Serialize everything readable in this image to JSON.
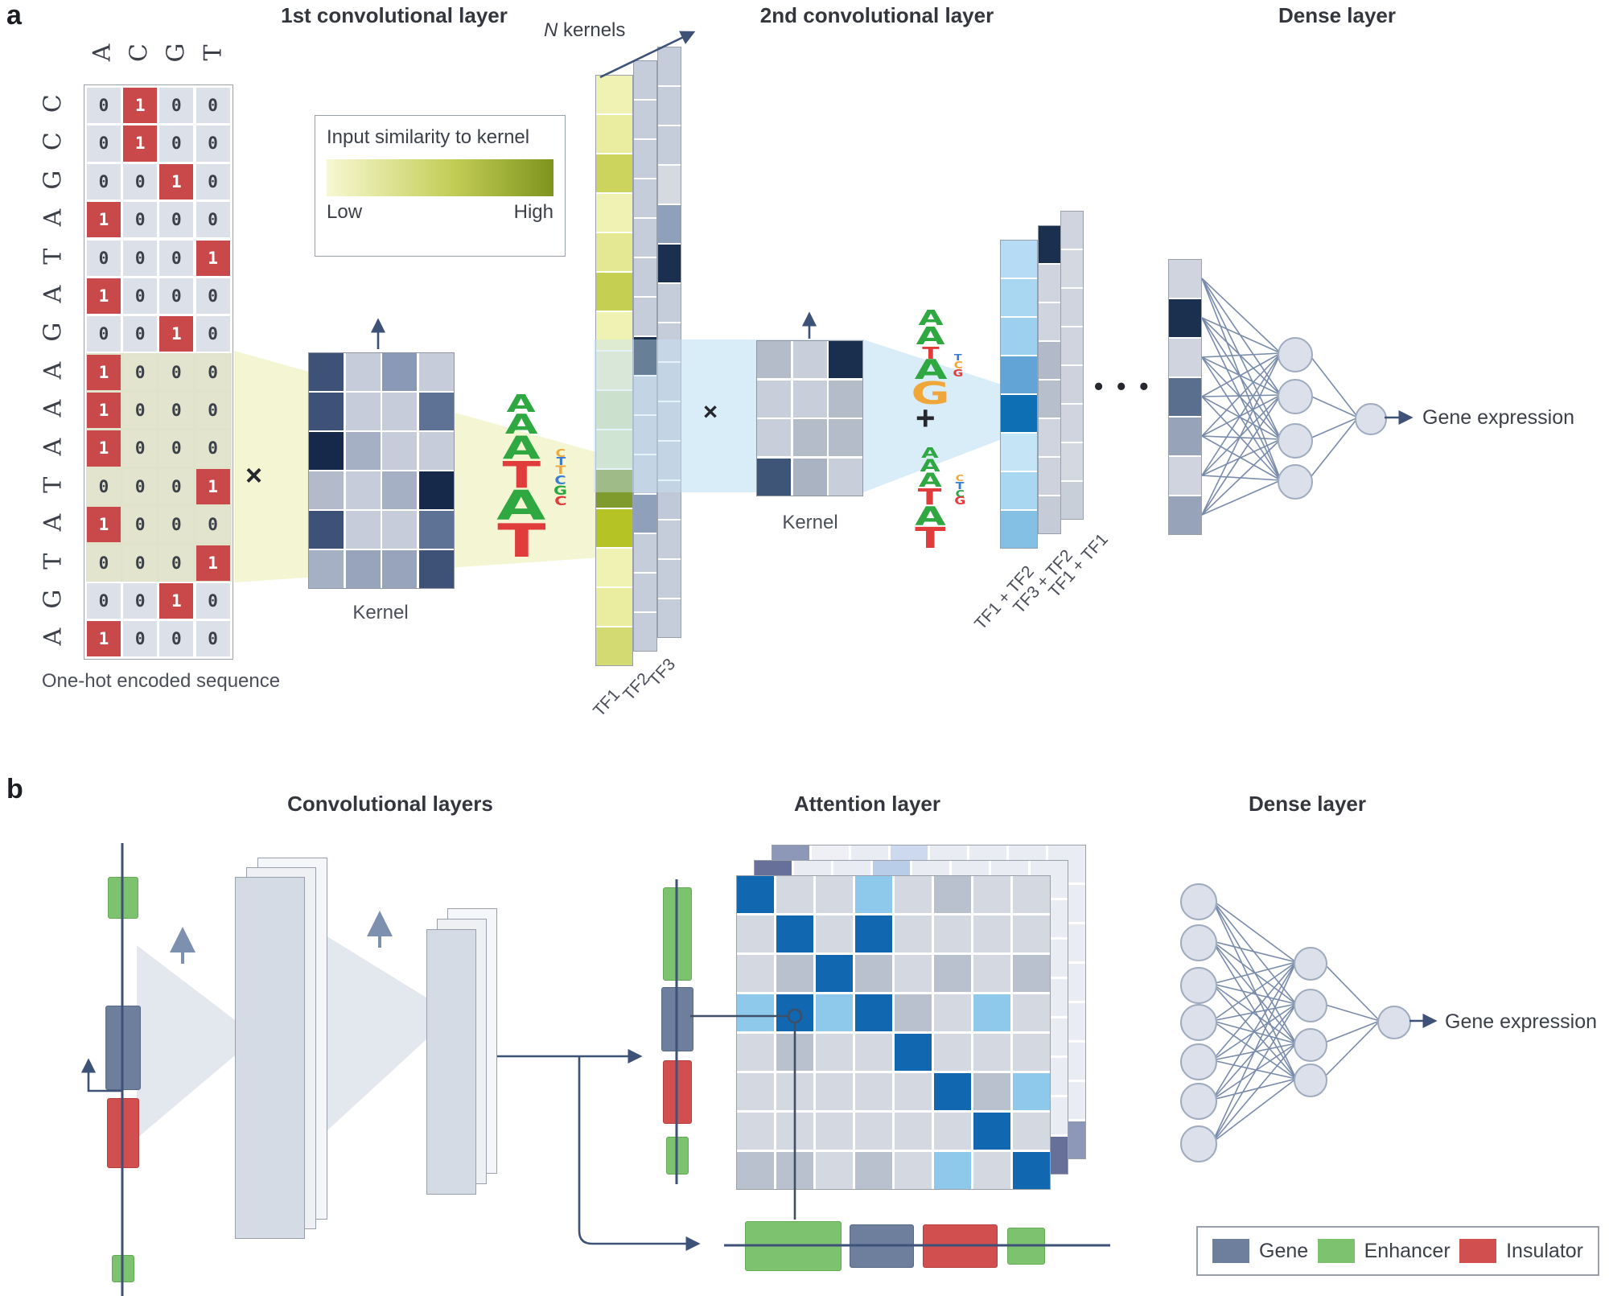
{
  "panel_a": {
    "label": "a",
    "titles": {
      "conv1": "1st convolutional layer",
      "n": "N",
      "kernels": " kernels",
      "conv2": "2nd convolutional layer",
      "dense": "Dense layer"
    },
    "similarity_legend": {
      "title": "Input similarity to kernel",
      "low": "Low",
      "high": "High",
      "gradient": [
        "#f7f8d2",
        "#c3ce57",
        "#7e941d"
      ]
    },
    "onehot": {
      "header": [
        "A",
        "C",
        "G",
        "T"
      ],
      "sequence": [
        "C",
        "C",
        "G",
        "A",
        "T",
        "A",
        "G",
        "A",
        "A",
        "A",
        "T",
        "A",
        "T",
        "G",
        "A"
      ],
      "rows": [
        [
          0,
          1,
          0,
          0
        ],
        [
          0,
          1,
          0,
          0
        ],
        [
          0,
          0,
          1,
          0
        ],
        [
          1,
          0,
          0,
          0
        ],
        [
          0,
          0,
          0,
          1
        ],
        [
          1,
          0,
          0,
          0
        ],
        [
          0,
          0,
          1,
          0
        ],
        [
          1,
          0,
          0,
          0
        ],
        [
          1,
          0,
          0,
          0
        ],
        [
          1,
          0,
          0,
          0
        ],
        [
          0,
          0,
          0,
          1
        ],
        [
          1,
          0,
          0,
          0
        ],
        [
          0,
          0,
          0,
          1
        ],
        [
          0,
          0,
          1,
          0
        ],
        [
          1,
          0,
          0,
          0
        ]
      ],
      "highlight_rows": [
        7,
        8,
        9,
        10,
        11,
        12
      ],
      "caption": "One-hot encoded sequence",
      "multiply": "×"
    },
    "kernel1": {
      "label": "Kernel",
      "cells": [
        [
          "#3d5276",
          "#c6ccd9",
          "#8a9ab6",
          "#c6ccd9"
        ],
        [
          "#3d5276",
          "#c6ccd9",
          "#c6ccd9",
          "#5d7295"
        ],
        [
          "#16294b",
          "#a6b0c4",
          "#c6ccd9",
          "#c6ccd9"
        ],
        [
          "#b3bbca",
          "#c6ccd9",
          "#a6b0c4",
          "#16294b"
        ],
        [
          "#3d5276",
          "#c6ccd9",
          "#c6ccd9",
          "#5d7295"
        ],
        [
          "#a6b0c4",
          "#97a4bb",
          "#97a4bb",
          "#3d5276"
        ]
      ]
    },
    "logo_tataaa_1": {
      "letters": [
        {
          "ch": "A",
          "c": "g",
          "s": 30
        },
        {
          "ch": "A",
          "c": "g",
          "s": 34
        },
        {
          "ch": "A",
          "c": "g",
          "s": 39
        },
        {
          "ch": "T",
          "c": "r",
          "s": 45
        },
        {
          "ch": "A",
          "c": "g",
          "s": 51
        },
        {
          "ch": "T",
          "c": "r",
          "s": 57
        }
      ],
      "side": [
        {
          "ch": "C",
          "c": "y",
          "s": 13
        },
        {
          "ch": "T",
          "c": "b",
          "s": 13
        },
        {
          "ch": "T",
          "c": "y",
          "s": 14
        },
        {
          "ch": "C",
          "c": "b",
          "s": 15
        },
        {
          "ch": "G",
          "c": "g",
          "s": 16
        },
        {
          "ch": "C",
          "c": "r",
          "s": 16
        }
      ]
    },
    "tf_columns": {
      "labels": [
        "TF1",
        "TF2",
        "TF3"
      ],
      "tf1": [
        "#f0f2b4",
        "#eaeda0",
        "#ccd45e",
        "#f0f2b4",
        "#e4e892",
        "#c5cf52",
        "#f0f2b4",
        "#e7ecc4",
        "#cfe0ae",
        "#d8e5b8",
        "#7f9b2e",
        "#b5c424",
        "#f0f2b4",
        "#eaeda0",
        "#d3da71"
      ],
      "tf2": [
        "#c6cdda",
        "#c6cdda",
        "#c6cdda",
        "#c6cdda",
        "#c6cdda",
        "#c6cdda",
        "#c6cdda",
        "#1b2f4e",
        "#bfc9d8",
        "#bfc9d8",
        "#bfc9d8",
        "#8fa0bb",
        "#c6cdda",
        "#c6cdda",
        "#c6cdda"
      ],
      "tf3": [
        "#c6cdda",
        "#c6cdda",
        "#c6cdda",
        "#d5d9e0",
        "#8fa0bb",
        "#1b2f4e",
        "#c6cdda",
        "#c6cdda",
        "#bfc9d8",
        "#bfc9d8",
        "#bfc9d8",
        "#bfc9d8",
        "#c6cdda",
        "#c6cdda",
        "#c6cdda"
      ]
    },
    "conv2": {
      "multiply": "×",
      "plus": "+",
      "kernel": {
        "label": "Kernel",
        "cells": [
          [
            "#b5bcc9",
            "#c9cfda",
            "#1a2e4d"
          ],
          [
            "#c9cfda",
            "#c9cfda",
            "#b5bcc9"
          ],
          [
            "#c9cfda",
            "#b5bcc9",
            "#b5bcc9"
          ],
          [
            "#3f5578",
            "#aab3c2",
            "#c9cfda"
          ]
        ]
      },
      "logo_gataa": {
        "letters": [
          {
            "ch": "A",
            "c": "g",
            "s": 26
          },
          {
            "ch": "A",
            "c": "g",
            "s": 30
          },
          {
            "ch": "T",
            "c": "r",
            "s": 20
          },
          {
            "ch": "A",
            "c": "g",
            "s": 34
          },
          {
            "ch": "G",
            "c": "y",
            "s": 38
          }
        ],
        "side": [
          {
            "ch": "T",
            "c": "b",
            "s": 11
          },
          {
            "ch": "C",
            "c": "y",
            "s": 12
          },
          {
            "ch": "G",
            "c": "r",
            "s": 12
          }
        ]
      },
      "logo_tataaa_2": {
        "letters": [
          {
            "ch": "A",
            "c": "g",
            "s": 18
          },
          {
            "ch": "A",
            "c": "g",
            "s": 21
          },
          {
            "ch": "A",
            "c": "g",
            "s": 24
          },
          {
            "ch": "T",
            "c": "r",
            "s": 28
          },
          {
            "ch": "A",
            "c": "g",
            "s": 32
          },
          {
            "ch": "T",
            "c": "r",
            "s": 36
          }
        ],
        "side": [
          {
            "ch": "C",
            "c": "y",
            "s": 11
          },
          {
            "ch": "T",
            "c": "b",
            "s": 12
          },
          {
            "ch": "C",
            "c": "g",
            "s": 12
          },
          {
            "ch": "G",
            "c": "r",
            "s": 13
          }
        ]
      }
    },
    "out_columns": {
      "labels": [
        "TF1 + TF2",
        "TF3 + TF2",
        "TF1 + TF1"
      ],
      "col1": [
        "#b5dcf4",
        "#a9d6f1",
        "#9dd0ee",
        "#62a4d6",
        "#0f6fb4",
        "#c5e4f6",
        "#a9d7f1",
        "#84c0e4"
      ],
      "col2": [
        "#1b2f4e",
        "#d0d4de",
        "#d0d4de",
        "#b2b9c8",
        "#b8bfcc",
        "#d0d4de",
        "#cdd2dc",
        "#c6ccd7"
      ],
      "col3": [
        "#d0d4de",
        "#d4d8e1",
        "#d0d4de",
        "#d0d4de",
        "#cdd2dc",
        "#d0d4de",
        "#d4d8e1",
        "#c9cfd9"
      ]
    },
    "dots": "• • •",
    "dense": {
      "input_cells": [
        "#d0d4de",
        "#1b2f4e",
        "#d0d4de",
        "#5a6e8e",
        "#97a3b9",
        "#d0d4de",
        "#97a3b9"
      ],
      "output_label": "Gene expression"
    }
  },
  "panel_b": {
    "label": "b",
    "titles": {
      "conv": "Convolutional layers",
      "attention": "Attention layer",
      "dense": "Dense layer"
    },
    "attention": {
      "front": [
        "DGGLGMGG",
        "GDGDGGGG",
        "GMDMGMGM",
        "LDLDMGLG",
        "GMGGDGGG",
        "GGGGGDML",
        "GGGGGGDG",
        "MMGMGLGD"
      ],
      "mid": [
        "SPPBPPPP",
        "PPPPPPPP",
        "PPPPPPPP",
        "PPPPPPPP",
        "PPPPPPPP",
        "PPPPPPPP",
        "PPPPPPPP",
        "PPPPPPPS"
      ],
      "back": [
        "spPbPPPP",
        "PPPPPPPP",
        "PPPPPPPP",
        "PPPPPPPP",
        "PPPPPPPP",
        "PPPPPPPP",
        "PPPPPPPP",
        "PPPPPPPs"
      ]
    },
    "dense_output_label": "Gene expression",
    "legend": {
      "items": [
        {
          "label": "Gene",
          "color": "#6e7f9e"
        },
        {
          "label": "Enhancer",
          "color": "#7dc36f"
        },
        {
          "label": "Insulator",
          "color": "#d14f4f"
        }
      ]
    }
  },
  "palettes": {
    "attn": {
      "D": "#1168b1",
      "L": "#8ec8ea",
      "G": "#d3d8e1",
      "M": "#b9c0ce",
      "P": "#e9ecf2",
      "S": "#667099",
      "B": "#b9cce8",
      "s": "#8d97b8",
      "b": "#ccd9ee",
      "p": "#eef0f5"
    },
    "logo": {
      "g": "#2fa842",
      "r": "#e03c3c",
      "y": "#f0a73a",
      "b": "#3a7bd5"
    }
  },
  "colors": {
    "arrow_dark": "#3e5278",
    "arrow_light": "#7d90b0",
    "beam_yellow": "#f3f5d3",
    "beam_blue": "#d9edf8",
    "beam_gray": "#e3e7ee",
    "onehot_red": "#c9494b",
    "navy": "#1b2f4e"
  }
}
